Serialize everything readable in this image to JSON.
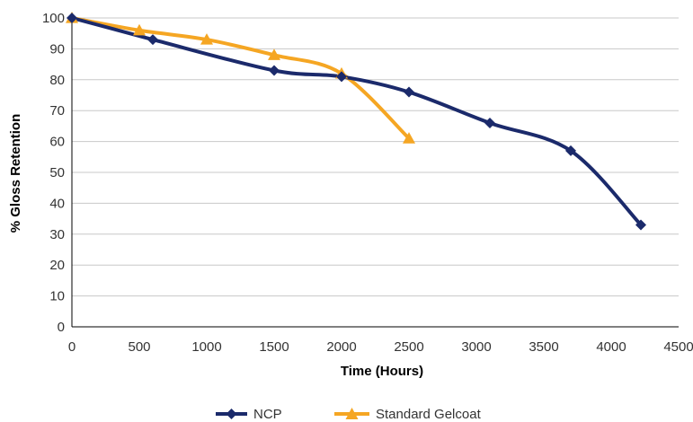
{
  "chart_data": {
    "type": "line",
    "xlabel": "Time (Hours)",
    "ylabel": "% Gloss Retention",
    "xlim": [
      0,
      4500
    ],
    "ylim": [
      0,
      100
    ],
    "x_ticks": [
      0,
      500,
      1000,
      1500,
      2000,
      2500,
      3000,
      3500,
      4000,
      4500
    ],
    "y_ticks": [
      0,
      10,
      20,
      30,
      40,
      50,
      60,
      70,
      80,
      90,
      100
    ],
    "grid": "horizontal",
    "legend_position": "bottom",
    "series": [
      {
        "name": "NCP",
        "color": "#1b2a6b",
        "marker": "diamond",
        "smooth": true,
        "x": [
          0,
          600,
          1500,
          2000,
          2500,
          3100,
          3700,
          4220
        ],
        "y": [
          100,
          93,
          83,
          81,
          76,
          66,
          57,
          33
        ]
      },
      {
        "name": "Standard Gelcoat",
        "color": "#f5a623",
        "marker": "triangle",
        "smooth": true,
        "x": [
          0,
          500,
          1000,
          1500,
          2000,
          2500
        ],
        "y": [
          100,
          96,
          93,
          88,
          82,
          61
        ]
      }
    ]
  }
}
